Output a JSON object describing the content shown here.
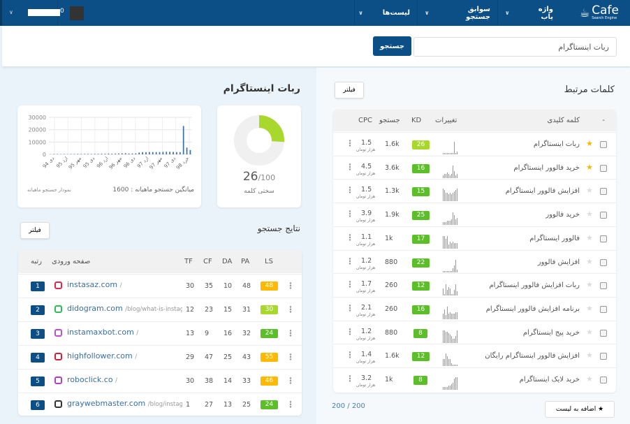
{
  "nav": {
    "logo": "Cafe",
    "logo_sub": "Search Engine",
    "menu": [
      {
        "label": "واژه یاب"
      },
      {
        "label": "سوابق جستجو"
      },
      {
        "label": "لیست‌ها"
      }
    ],
    "user_suffix": "0"
  },
  "search": {
    "value": "ربات اینستاگرام",
    "button": "جستجو"
  },
  "related": {
    "title": "کلمات مرتبط",
    "filter": "فیلتر",
    "columns": {
      "keyword": "کلمه کلیدی",
      "changes": "تغییرات",
      "kd": "KD",
      "search": "جستجو",
      "cpc": "CPC",
      "sort": "-"
    },
    "cpc_unit": "هزار تومان",
    "rows": [
      {
        "keyword": "ربات اینستاگرام",
        "starred": true,
        "kd": 26,
        "search": "1.6k",
        "cpc": "1.5",
        "trend": [
          1,
          1,
          1,
          1,
          1,
          1,
          1,
          1,
          9,
          1,
          2
        ]
      },
      {
        "keyword": "خرید فالوور اینستاگرام",
        "starred": true,
        "kd": 16,
        "search": "3.6k",
        "cpc": "4.5",
        "trend": [
          2,
          3,
          3,
          4,
          3,
          2,
          3,
          9,
          5,
          2,
          3
        ]
      },
      {
        "keyword": "افزایش فالوور اینستاگرام",
        "starred": false,
        "kd": 15,
        "search": "1.3k",
        "cpc": "1.5",
        "trend": [
          9,
          8,
          6,
          6,
          5,
          6,
          5,
          6,
          7,
          8,
          9
        ]
      },
      {
        "keyword": "خرید فالوور",
        "starred": false,
        "kd": 25,
        "search": "1.9k",
        "cpc": "3.9",
        "trend": [
          2,
          2,
          2,
          3,
          3,
          3,
          4,
          9,
          7,
          4,
          5
        ]
      },
      {
        "keyword": "فالوور اینستاگرام",
        "starred": false,
        "kd": 17,
        "search": "1k",
        "cpc": "1.1",
        "trend": [
          9,
          9,
          7,
          9,
          3,
          5,
          4,
          5,
          4,
          4,
          4
        ]
      },
      {
        "keyword": "افزایش فالوور",
        "starred": false,
        "kd": 22,
        "search": "880",
        "cpc": "1.2",
        "trend": [
          1,
          1,
          1,
          1,
          1,
          1,
          1,
          3,
          5,
          9,
          2
        ]
      },
      {
        "keyword": "ربات افزایش فالوور اینستاگرام",
        "starred": false,
        "kd": 12,
        "search": "260",
        "cpc": "1.7",
        "trend": [
          5,
          1,
          8,
          4,
          6,
          5,
          1,
          1,
          4,
          8,
          3
        ]
      },
      {
        "keyword": "برنامه افزایش فالوور اینستاگرام",
        "starred": false,
        "kd": 16,
        "search": "260",
        "cpc": "2.1",
        "trend": [
          4,
          7,
          3,
          9,
          4,
          5,
          4,
          4,
          4,
          5,
          5
        ]
      },
      {
        "keyword": "خرید پیج اینستاگرام",
        "starred": false,
        "kd": 8,
        "search": "880",
        "cpc": "1.2",
        "trend": [
          9,
          9,
          8,
          8,
          7,
          6,
          5,
          3,
          3,
          5,
          9
        ]
      },
      {
        "keyword": "افزایش فالوور اینستاگرام رایگان",
        "starred": false,
        "kd": 12,
        "search": "1.6k",
        "cpc": "1.4",
        "trend": [
          5,
          5,
          9,
          7,
          5,
          5,
          2,
          1,
          1,
          1,
          1
        ]
      },
      {
        "keyword": "خرید لایک اینستاگرام",
        "starred": false,
        "kd": 8,
        "search": "1k",
        "cpc": "3.2",
        "trend": [
          2,
          2,
          2,
          2,
          3,
          3,
          4,
          5,
          8,
          9,
          9
        ]
      }
    ],
    "count": "200 / 200",
    "add_to_list": "اضافه به لیست"
  },
  "overview": {
    "title": "ربات اینستاگرام",
    "difficulty": {
      "value": "26",
      "max": "/100",
      "label": "سختی کلمه",
      "fraction": 0.26
    },
    "avg_label": "میانگین جستجو ماهیانه : 1600",
    "chart_label": "نمودار جستجو ماهیانه"
  },
  "chart_data": {
    "type": "bar",
    "ylim": [
      0,
      30000
    ],
    "yticks": [
      "0",
      "10000",
      "20000",
      "30000"
    ],
    "grid": true,
    "xticks": [
      "دی 94",
      "ارد 95",
      "مهر 95",
      "دی 95",
      "ارد 96",
      "مهر 96",
      "دی 96",
      "ارد 97",
      "مهر 97",
      "دی 97",
      "خرد 98"
    ],
    "values": [
      100,
      300,
      300,
      200,
      300,
      200,
      300,
      300,
      400,
      300,
      400,
      400,
      300,
      400,
      400,
      500,
      500,
      600,
      500,
      600,
      700,
      800,
      900,
      700,
      700,
      800,
      1500,
      1800,
      1800,
      1900,
      1900,
      1900,
      1900,
      2000,
      2100,
      2100,
      2000,
      1800,
      1800,
      23000,
      5500,
      3500
    ]
  },
  "results": {
    "title": "نتایج جستجو",
    "filter": "فیلتر",
    "columns": {
      "rank": "رتبه",
      "page": "صفحه ورودی",
      "tf": "TF",
      "cf": "CF",
      "da": "DA",
      "pa": "PA",
      "ls": "LS"
    },
    "rows": [
      {
        "rank": "1",
        "domain": "instasaz.com",
        "path": "/",
        "tf": "30",
        "cf": "35",
        "da": "10",
        "pa": "48",
        "ls": "48",
        "ls_color": "#ffb900",
        "icon": "instagram-icon",
        "icolor": "#e0284a"
      },
      {
        "rank": "2",
        "domain": "didogram.com",
        "path": "/blog/what-is-instag",
        "tf": "12",
        "cf": "23",
        "da": "15",
        "pa": "31",
        "ls": "30",
        "ls_color": "#a8d82b",
        "icon": "didogram-logo-icon",
        "icolor": "#2ebd59"
      },
      {
        "rank": "3",
        "domain": "instamaxbot.com",
        "path": "/",
        "tf": "13",
        "cf": "9",
        "da": "16",
        "pa": "32",
        "ls": "24",
        "ls_color": "#5cbf2a",
        "icon": "instamaxbot-logo-icon",
        "icolor": "#c04fd0"
      },
      {
        "rank": "4",
        "domain": "highfollower.com",
        "path": "/",
        "tf": "29",
        "cf": "47",
        "da": "25",
        "pa": "43",
        "ls": "55",
        "ls_color": "#ffb900",
        "icon": "highfollower-logo-icon",
        "icolor": "#d0203a"
      },
      {
        "rank": "5",
        "domain": "roboclick.co",
        "path": "/",
        "tf": "30",
        "cf": "38",
        "da": "14",
        "pa": "33",
        "ls": "46",
        "ls_color": "#ffb900",
        "icon": "instagram-icon",
        "icolor": "#b040c0"
      },
      {
        "rank": "6",
        "domain": "graywebmaster.com",
        "path": "/blog/instagram-robo",
        "tf": "1",
        "cf": "27",
        "da": "13",
        "pa": "25",
        "ls": "24",
        "ls_color": "#5cbf2a",
        "icon": "hat-logo-icon",
        "icolor": "#333"
      }
    ]
  },
  "colors": {
    "brand": "#0b4f86",
    "kd_green": "#5cbf2a",
    "kd_lime": "#a8d82b",
    "star": "#f5b800"
  }
}
